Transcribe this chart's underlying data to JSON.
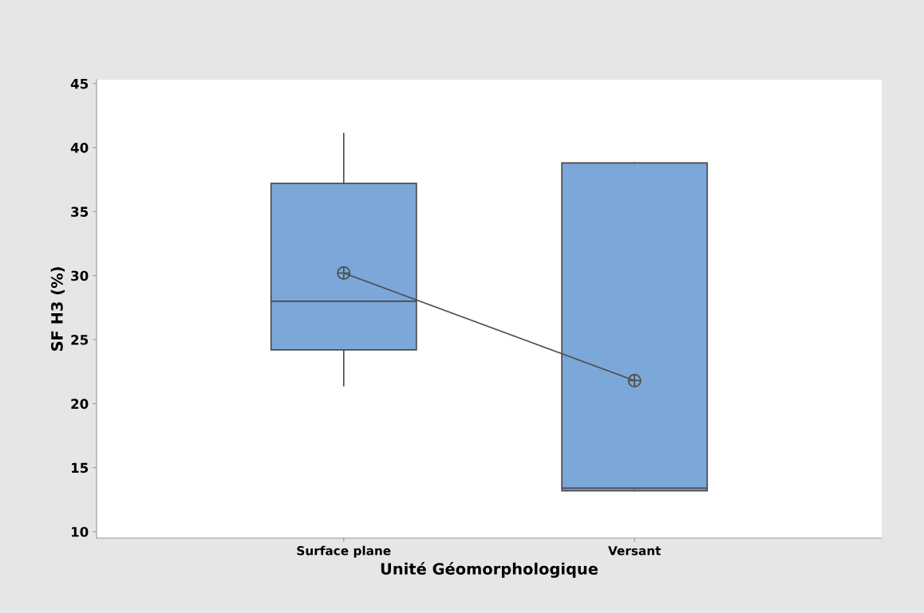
{
  "chart_data": {
    "type": "box",
    "xlabel": "Unité Géomorphologique",
    "ylabel": "SF H3 (%)",
    "categories": [
      "Surface plane",
      "Versant"
    ],
    "boxes": [
      {
        "low": 21.4,
        "q1": 24.2,
        "median": 28.0,
        "q3": 37.2,
        "high": 41.1
      },
      {
        "low": 13.2,
        "q1": 13.2,
        "median": 13.4,
        "q3": 38.8,
        "high": 38.8
      }
    ],
    "color": "#7ba7d9",
    "series": [
      {
        "type": "line",
        "color": "#4d4d4d",
        "marker": "cross",
        "values": [
          30.2,
          21.8
        ]
      }
    ],
    "ylim": [
      9.5,
      45.3
    ],
    "yticks": [
      10,
      15,
      20,
      25,
      30,
      35,
      40,
      45
    ],
    "grid": false,
    "legend": false
  }
}
